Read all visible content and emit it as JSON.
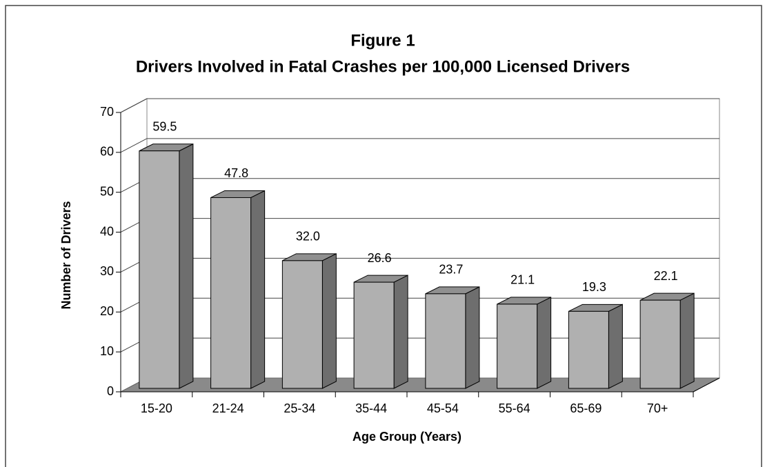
{
  "chart_data": {
    "type": "bar3d",
    "title": "Figure 1",
    "subtitle": "Drivers Involved in Fatal Crashes per 100,000 Licensed Drivers",
    "xlabel": "Age Group (Years)",
    "ylabel": "Number of Drivers",
    "categories": [
      "15-20",
      "21-24",
      "25-34",
      "35-44",
      "45-54",
      "55-64",
      "65-69",
      "70+"
    ],
    "values": [
      59.5,
      47.8,
      32.0,
      26.6,
      23.7,
      21.1,
      19.3,
      22.1
    ],
    "value_labels": [
      "59.5",
      "47.8",
      "32.0",
      "26.6",
      "23.7",
      "21.1",
      "19.3",
      "22.1"
    ],
    "color": "#b0b0b0",
    "ylim": [
      0,
      70
    ],
    "yticks": [
      0,
      10,
      20,
      30,
      40,
      50,
      60,
      70
    ],
    "grid": true
  }
}
